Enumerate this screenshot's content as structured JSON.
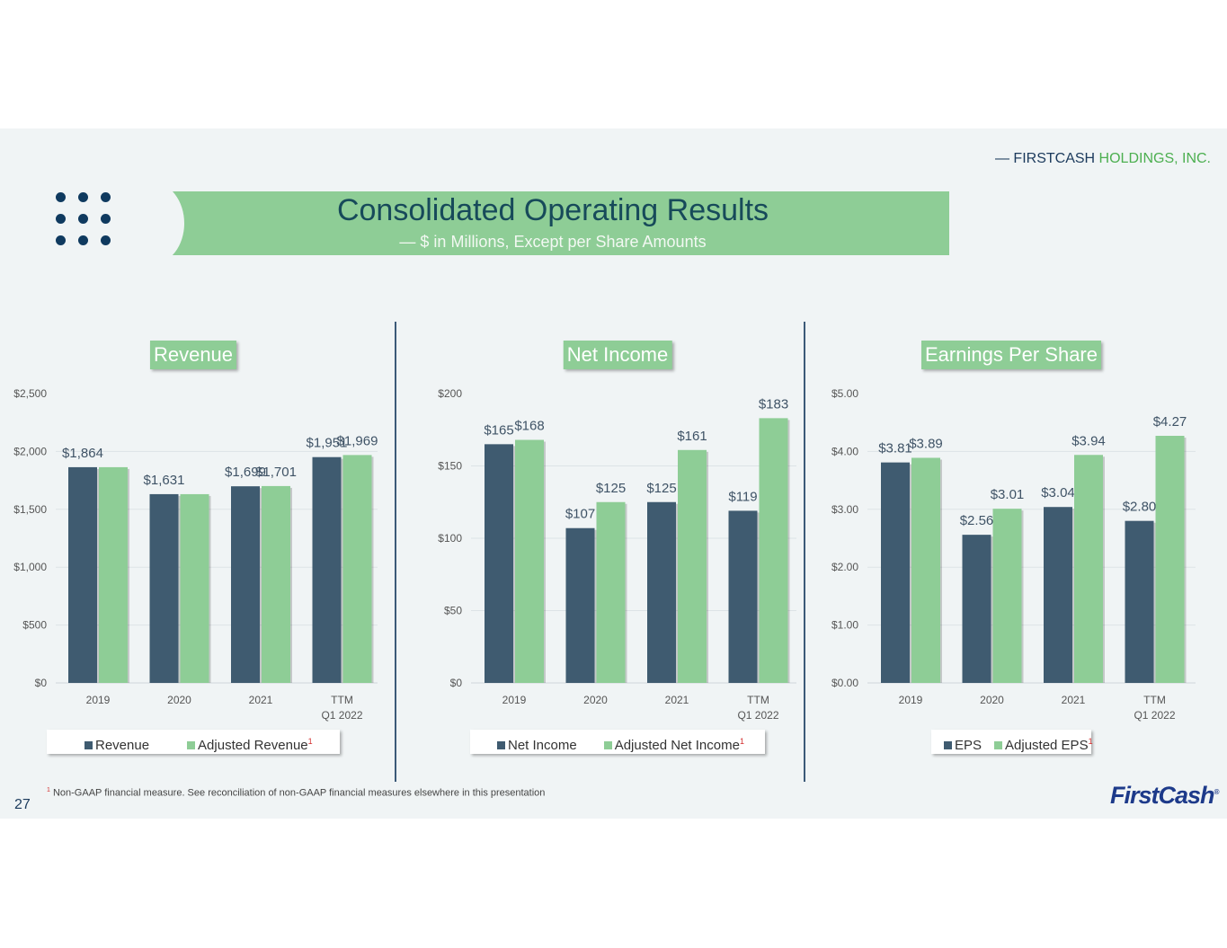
{
  "header": {
    "brand_prefix": "— FIRSTCASH",
    "brand_suffix": " HOLDINGS, INC.",
    "title": "Consolidated Operating Results",
    "subtitle": "— $ in Millions, Except per Share Amounts"
  },
  "footnote": {
    "marker": "1",
    "text": "Non-GAAP financial measure. See reconciliation of non-GAAP financial measures elsewhere in this presentation"
  },
  "page_number": "27",
  "logo": "FirstCash",
  "colors": {
    "dark": "#3f5b70",
    "green": "#8ecd96",
    "banner": "#8ecd96"
  },
  "chart_data": [
    {
      "type": "bar",
      "title": "Revenue",
      "categories": [
        "2019",
        "2020",
        "2021",
        "TTM Q1 2022"
      ],
      "ylim": [
        0,
        2500
      ],
      "yticks": [
        "$0",
        "$500",
        "$1,000",
        "$1,500",
        "$2,000",
        "$2,500"
      ],
      "ytick_values": [
        0,
        500,
        1000,
        1500,
        2000,
        2500
      ],
      "series": [
        {
          "name": "Revenue",
          "values": [
            1864,
            1631,
            1699,
            1951
          ],
          "labels": [
            "$1,864",
            "$1,631",
            "$1,699",
            "$1,951"
          ]
        },
        {
          "name": "Adjusted Revenue",
          "footnote": "1",
          "values": [
            1864,
            1631,
            1701,
            1969
          ],
          "labels": [
            "",
            "",
            "$1,701",
            "$1,969"
          ]
        }
      ],
      "legend": "bottom",
      "grid": true
    },
    {
      "type": "bar",
      "title": "Net Income",
      "categories": [
        "2019",
        "2020",
        "2021",
        "TTM Q1 2022"
      ],
      "ylim": [
        0,
        200
      ],
      "yticks": [
        "$0",
        "$50",
        "$100",
        "$150",
        "$200"
      ],
      "ytick_values": [
        0,
        50,
        100,
        150,
        200
      ],
      "series": [
        {
          "name": "Net Income",
          "values": [
            165,
            107,
            125,
            119
          ],
          "labels": [
            "$165",
            "$107",
            "$125",
            "$119"
          ]
        },
        {
          "name": "Adjusted Net Income",
          "footnote": "1",
          "values": [
            168,
            125,
            161,
            183
          ],
          "labels": [
            "$168",
            "$125",
            "$161",
            "$183"
          ]
        }
      ],
      "legend": "bottom",
      "grid": true
    },
    {
      "type": "bar",
      "title": "Earnings Per Share",
      "categories": [
        "2019",
        "2020",
        "2021",
        "TTM Q1 2022"
      ],
      "ylim": [
        0,
        5
      ],
      "yticks": [
        "$0.00",
        "$1.00",
        "$2.00",
        "$3.00",
        "$4.00",
        "$5.00"
      ],
      "ytick_values": [
        0,
        1,
        2,
        3,
        4,
        5
      ],
      "series": [
        {
          "name": "EPS",
          "values": [
            3.81,
            2.56,
            3.04,
            2.8
          ],
          "labels": [
            "$3.81",
            "$2.56",
            "$3.04",
            "$2.80"
          ]
        },
        {
          "name": "Adjusted EPS",
          "footnote": "1",
          "values": [
            3.89,
            3.01,
            3.94,
            4.27
          ],
          "labels": [
            "$3.89",
            "$3.01",
            "$3.94",
            "$4.27"
          ]
        }
      ],
      "legend": "bottom",
      "grid": true
    }
  ]
}
